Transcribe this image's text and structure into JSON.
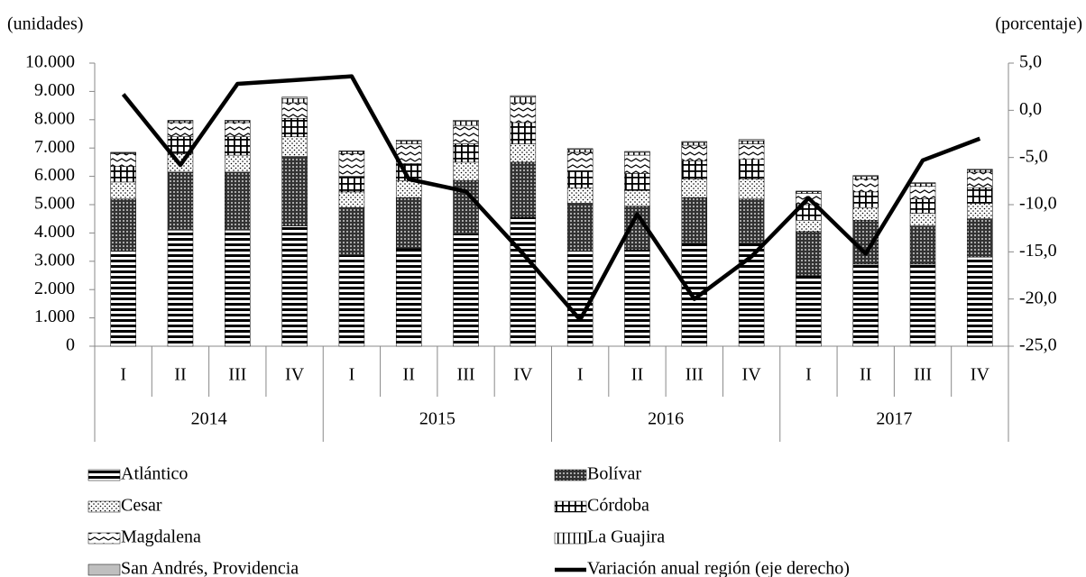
{
  "chart_data": {
    "type": "bar",
    "y_label": "(unidades)",
    "y2_label": "(porcentaje)",
    "categories": [
      "I",
      "II",
      "III",
      "IV",
      "I",
      "II",
      "III",
      "IV",
      "I",
      "II",
      "III",
      "IV",
      "I",
      "II",
      "III",
      "IV"
    ],
    "category_groups": [
      "2014",
      "2015",
      "2016",
      "2017"
    ],
    "stacked": true,
    "ylim": [
      0,
      10000
    ],
    "yticks": [
      0,
      {
        "value": 1000,
        "label": "1.000"
      },
      {
        "value": 2000,
        "label": "2.000"
      },
      {
        "value": 3000,
        "label": "3.000"
      },
      {
        "value": 4000,
        "label": "4.000"
      },
      {
        "value": 5000,
        "label": "5.000"
      },
      {
        "value": 6000,
        "label": "6.000"
      },
      {
        "value": 7000,
        "label": "7.000"
      },
      {
        "value": 8000,
        "label": "8.000"
      },
      {
        "value": 9000,
        "label": "9.000"
      },
      {
        "value": 10000,
        "label": "10.000"
      }
    ],
    "y2lim": [
      -25,
      5
    ],
    "y2ticks": [
      {
        "value": -25,
        "label": "-25,0"
      },
      {
        "value": -20,
        "label": "-20,0"
      },
      {
        "value": -15,
        "label": "-15,0"
      },
      {
        "value": -10,
        "label": "-10,0"
      },
      {
        "value": -5,
        "label": "-5,0"
      },
      {
        "value": 0,
        "label": "0,0"
      },
      {
        "value": 5,
        "label": "5,0"
      }
    ],
    "series": [
      {
        "name": "Atlántico",
        "color": "#000000",
        "pattern": "horizontal-stripes",
        "values": [
          3350,
          4100,
          4100,
          4250,
          3200,
          3450,
          3950,
          4550,
          3350,
          3400,
          3650,
          3650,
          2500,
          2900,
          2900,
          3150
        ]
      },
      {
        "name": "Bolívar",
        "color": "#000000",
        "pattern": "dense-dots",
        "values": [
          1850,
          2050,
          2050,
          2450,
          1700,
          1800,
          1900,
          1950,
          1700,
          1550,
          1600,
          1550,
          1550,
          1550,
          1350,
          1350
        ]
      },
      {
        "name": "Cesar",
        "color": "#000000",
        "pattern": "sparse-dots",
        "values": [
          600,
          650,
          600,
          700,
          550,
          600,
          650,
          650,
          550,
          550,
          650,
          700,
          400,
          450,
          450,
          550
        ]
      },
      {
        "name": "Córdoba",
        "color": "#000000",
        "pattern": "grid",
        "values": [
          550,
          600,
          650,
          650,
          550,
          600,
          650,
          750,
          600,
          600,
          650,
          700,
          550,
          550,
          500,
          550
        ]
      },
      {
        "name": "Magdalena",
        "color": "#000000",
        "pattern": "waves",
        "values": [
          450,
          500,
          500,
          550,
          800,
          700,
          650,
          700,
          650,
          650,
          550,
          550,
          400,
          450,
          450,
          550
        ]
      },
      {
        "name": "La Guajira",
        "color": "#000000",
        "pattern": "vertical-stripes",
        "values": [
          30,
          60,
          60,
          150,
          80,
          100,
          150,
          200,
          100,
          100,
          100,
          100,
          60,
          100,
          100,
          80
        ]
      },
      {
        "name": "San Andrés, Providencia",
        "color": "#bfbfbf",
        "pattern": "solid",
        "values": [
          20,
          20,
          20,
          50,
          20,
          30,
          30,
          50,
          30,
          30,
          30,
          50,
          20,
          30,
          30,
          20
        ]
      },
      {
        "name": "Variación anual región (eje derecho)",
        "color": "#000000",
        "type": "line",
        "axis": "y2",
        "values": [
          1.7,
          -5.8,
          2.8,
          3.2,
          3.6,
          -7.3,
          -8.6,
          -15.2,
          -22.2,
          -11.0,
          -20.0,
          -15.5,
          -9.3,
          -15.2,
          -5.3,
          -3.0
        ]
      }
    ]
  }
}
